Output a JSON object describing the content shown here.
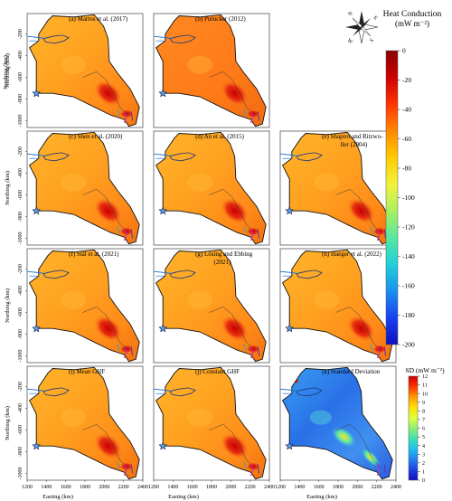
{
  "figure": {
    "xlabel": "Easting (km)",
    "ylabel": "Northing (km)",
    "x_ticks": [
      "1200",
      "1600",
      "2000",
      "2400"
    ],
    "x_ticks_mid": [
      "1400",
      "1800",
      "2200"
    ],
    "y_ticks": [
      "-200",
      "-400",
      "-600",
      "-800",
      "-1000"
    ]
  },
  "panels": [
    {
      "label": "(a) Martos et al. (2017)",
      "row": 0,
      "col": 0,
      "scale": "hc",
      "style": "variable"
    },
    {
      "label": "(b) Purucker (2012)",
      "row": 0,
      "col": 1,
      "scale": "hc",
      "style": "uniform_orange"
    },
    {
      "label": "(c) Shen et al. (2020)",
      "row": 1,
      "col": 0,
      "scale": "hc",
      "style": "variable"
    },
    {
      "label": "(d) An et al. (2015)",
      "row": 1,
      "col": 1,
      "scale": "hc",
      "style": "variable"
    },
    {
      "label": "(e) Shapiro and Ritzwo-",
      "label2": "ller (2004)",
      "row": 1,
      "col": 2,
      "scale": "hc",
      "style": "variable"
    },
    {
      "label": "(f) Stål et al. (2021)",
      "row": 2,
      "col": 0,
      "scale": "hc",
      "style": "variable"
    },
    {
      "label": "(g) Lösing and Ebbing",
      "label2": "(2021)",
      "row": 2,
      "col": 1,
      "scale": "hc",
      "style": "variable"
    },
    {
      "label": "(h) Haeger et al. (2022)",
      "row": 2,
      "col": 2,
      "scale": "hc",
      "style": "variable"
    },
    {
      "label": "(i) Mean GHF",
      "row": 3,
      "col": 0,
      "scale": "hc",
      "style": "variable"
    },
    {
      "label": "(j) Constant GHF",
      "row": 3,
      "col": 1,
      "scale": "hc",
      "style": "variable"
    },
    {
      "label": "(k) Standard Deviation",
      "row": 3,
      "col": 2,
      "scale": "sd",
      "style": "sd"
    }
  ],
  "colorbar_hc": {
    "title": "Heat Conduction",
    "unit": "(mW m⁻²)",
    "ticks": [
      "0",
      "-20",
      "-40",
      "-60",
      "-80",
      "-100",
      "-120",
      "-140",
      "-160",
      "-180",
      "-200"
    ],
    "colors": [
      "#8b0000",
      "#cc0000",
      "#ff3300",
      "#ff8800",
      "#ffcc00",
      "#f2f23a",
      "#aaf060",
      "#55e8a0",
      "#20d0d8",
      "#1a90f0",
      "#1a40f0",
      "#1010c0"
    ]
  },
  "colorbar_sd": {
    "title": "SD (mW m⁻²)",
    "ticks": [
      "12",
      "11",
      "10",
      "9",
      "8",
      "7",
      "6",
      "5",
      "4",
      "3",
      "2",
      "1",
      "0"
    ],
    "colors": [
      "#cc0000",
      "#ff3300",
      "#ff9900",
      "#ffe000",
      "#e0ff40",
      "#90f070",
      "#40e0b0",
      "#20c0f0",
      "#2080f0",
      "#2040e0",
      "#1010c0"
    ]
  },
  "compass": {
    "north": "N",
    "east": "E",
    "south": "S",
    "west": "W"
  }
}
